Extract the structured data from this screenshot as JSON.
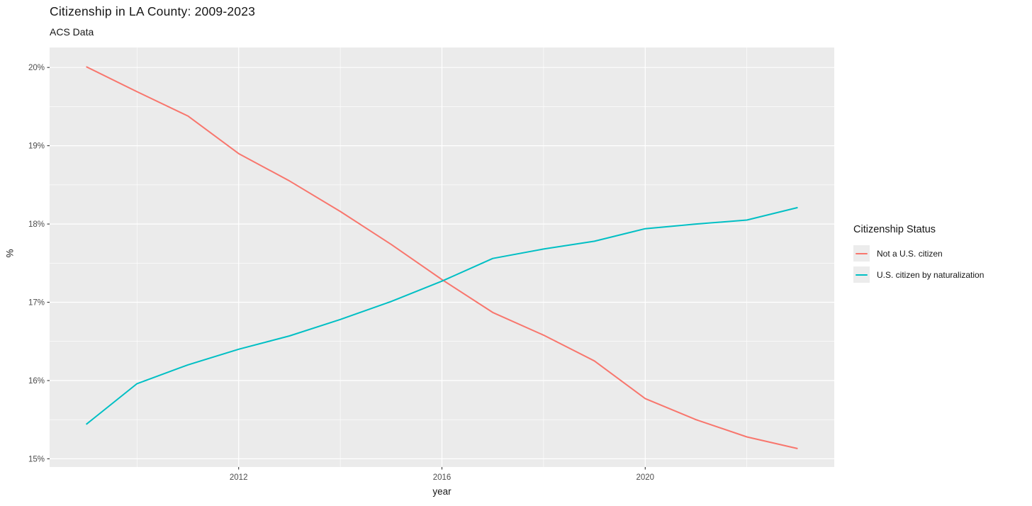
{
  "chart_data": {
    "type": "line",
    "title": "Citizenship in LA County: 2009-2023",
    "subtitle": "ACS Data",
    "xlabel": "year",
    "ylabel": "%",
    "x": [
      2009,
      2010,
      2011,
      2012,
      2013,
      2014,
      2015,
      2016,
      2017,
      2018,
      2019,
      2020,
      2021,
      2022,
      2023
    ],
    "series": [
      {
        "name": "Not a U.S. citizen",
        "color": "#F8766D",
        "values": [
          20.01,
          19.69,
          19.38,
          18.9,
          18.55,
          18.16,
          17.74,
          17.29,
          16.87,
          16.58,
          16.25,
          15.77,
          15.5,
          15.28,
          15.13
        ]
      },
      {
        "name": "U.S. citizen by naturalization",
        "color": "#00BFC4",
        "values": [
          15.44,
          15.96,
          16.2,
          16.4,
          16.57,
          16.78,
          17.01,
          17.27,
          17.56,
          17.68,
          17.78,
          17.94,
          18.0,
          18.05,
          18.21
        ]
      }
    ],
    "x_ticks": [
      {
        "value": 2012,
        "label": "2012"
      },
      {
        "value": 2016,
        "label": "2016"
      },
      {
        "value": 2020,
        "label": "2020"
      }
    ],
    "x_minor": [
      2010,
      2014,
      2018,
      2022
    ],
    "y_ticks": [
      {
        "value": 15,
        "label": "15%"
      },
      {
        "value": 16,
        "label": "16%"
      },
      {
        "value": 17,
        "label": "17%"
      },
      {
        "value": 18,
        "label": "18%"
      },
      {
        "value": 19,
        "label": "19%"
      },
      {
        "value": 20,
        "label": "20%"
      }
    ],
    "y_minor": [
      15.5,
      16.5,
      17.5,
      18.5,
      19.5
    ],
    "xlim": [
      2008.28,
      2023.72
    ],
    "ylim": [
      14.895,
      20.255
    ],
    "grid": true,
    "legend": {
      "title": "Citizenship Status",
      "position": "right"
    },
    "panel_background": "#EBEBEB",
    "grid_color": "#FFFFFF",
    "tick_label_color": "#4D4D4D",
    "tick_mark_color": "#333333"
  }
}
